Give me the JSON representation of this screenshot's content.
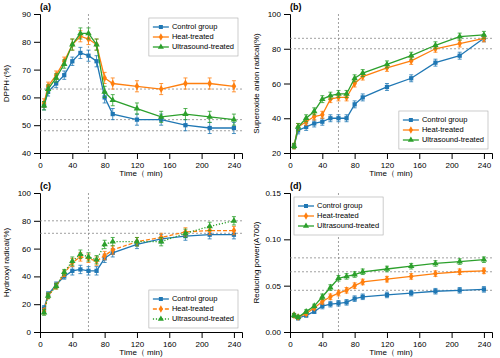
{
  "chart_data": [
    {
      "type": "line",
      "annotations": [
        "(a)"
      ],
      "x_label": "Time（ min)",
      "y_label": "DPPH·(%)",
      "x": [
        5,
        10,
        20,
        30,
        40,
        50,
        60,
        70,
        80,
        90,
        120,
        150,
        180,
        210,
        240
      ],
      "xlim": [
        0,
        250
      ],
      "xticks": [
        0,
        40,
        80,
        120,
        160,
        200,
        240
      ],
      "ylim": [
        40,
        90
      ],
      "yticks": [
        40,
        50,
        60,
        70,
        80,
        90
      ],
      "hlines": [
        63,
        52,
        48
      ],
      "vline": 60,
      "grid": false,
      "legend": "upper right",
      "series": [
        {
          "name": "Control group",
          "marker": "square",
          "line_style": "solid",
          "values": [
            57,
            62,
            65,
            68,
            73,
            76,
            75,
            73,
            60,
            54,
            52,
            52,
            50,
            49,
            49
          ],
          "errors": [
            1.5,
            1.5,
            1.5,
            1.5,
            1.5,
            2,
            2,
            2,
            2,
            2,
            2,
            2,
            2,
            2,
            2
          ]
        },
        {
          "name": "Heat-treated",
          "marker": "diamond",
          "line_style": "solid",
          "values": [
            58,
            64,
            68,
            73,
            79,
            82,
            81,
            79,
            67,
            65,
            64,
            63,
            65,
            65,
            64
          ],
          "errors": [
            1.5,
            1.5,
            1.5,
            1.5,
            2,
            2,
            2,
            2,
            2,
            2,
            2,
            2,
            2,
            2,
            2
          ]
        },
        {
          "name": "Ultrasound-treated",
          "marker": "triangle",
          "line_style": "solid",
          "values": [
            57,
            63,
            67,
            72,
            79,
            83,
            83,
            79,
            62,
            59,
            56,
            53,
            54,
            53,
            52
          ],
          "errors": [
            1.5,
            1.5,
            1.5,
            1.5,
            2,
            2,
            2,
            2,
            2,
            2,
            2,
            2,
            2,
            2,
            2
          ]
        }
      ]
    },
    {
      "type": "line",
      "annotations": [
        "(b)"
      ],
      "x_label": "Time（ min)",
      "y_label": "Superoxide anion radical(%)",
      "x": [
        5,
        10,
        20,
        30,
        40,
        50,
        60,
        70,
        80,
        90,
        120,
        150,
        180,
        210,
        240
      ],
      "xlim": [
        0,
        250
      ],
      "xticks": [
        0,
        40,
        80,
        120,
        160,
        200,
        240
      ],
      "ylim": [
        20,
        100
      ],
      "yticks": [
        20,
        40,
        60,
        80,
        100
      ],
      "hlines": [
        86,
        80
      ],
      "vline": 60,
      "grid": false,
      "legend": "lower right",
      "series": [
        {
          "name": "Control group",
          "marker": "square",
          "line_style": "solid",
          "values": [
            24,
            33,
            35,
            37,
            38,
            40,
            40,
            40,
            48,
            52,
            58,
            63,
            72,
            76,
            86
          ],
          "errors": [
            1.5,
            2,
            2,
            2,
            2,
            2,
            2,
            2,
            2,
            2,
            2,
            2,
            2,
            2,
            2
          ]
        },
        {
          "name": "Heat-treated",
          "marker": "diamond",
          "line_style": "solid",
          "values": [
            24,
            35,
            38,
            41,
            42,
            51,
            52,
            52,
            60,
            64,
            69,
            73,
            80,
            83,
            86
          ],
          "errors": [
            1.5,
            2,
            2,
            2,
            2,
            2,
            2,
            2,
            2,
            2,
            2,
            2,
            2,
            2,
            2
          ]
        },
        {
          "name": "Ultrasound-treated",
          "marker": "triangle",
          "line_style": "solid",
          "values": [
            24,
            35,
            40,
            44,
            51,
            53,
            54,
            54,
            63,
            66,
            71,
            76,
            82,
            87,
            88
          ],
          "errors": [
            1.5,
            2,
            2,
            2,
            2,
            2,
            2,
            2,
            2,
            2,
            2,
            2,
            2,
            2,
            2
          ]
        }
      ]
    },
    {
      "type": "line",
      "annotations": [
        "(c)"
      ],
      "x_label": "Time（ min)",
      "y_label": "Hydroxyl radical(%)",
      "x": [
        5,
        10,
        20,
        30,
        40,
        50,
        60,
        70,
        80,
        90,
        120,
        150,
        180,
        210,
        240
      ],
      "xlim": [
        0,
        250
      ],
      "xticks": [
        0,
        40,
        80,
        120,
        160,
        200,
        240
      ],
      "ylim": [
        0,
        100
      ],
      "yticks": [
        0,
        20,
        40,
        60,
        80,
        100
      ],
      "hlines": [
        80,
        71
      ],
      "vline": 60,
      "grid": false,
      "legend": "lower right",
      "series": [
        {
          "name": "Control group",
          "marker": "square",
          "line_style": "solid",
          "values": [
            17,
            27,
            34,
            40,
            44,
            45,
            44,
            44,
            53,
            57,
            63,
            67,
            69,
            70,
            70
          ],
          "errors": [
            2,
            2,
            2,
            2,
            3,
            3,
            3,
            3,
            3,
            3,
            3,
            3,
            3,
            3,
            3
          ]
        },
        {
          "name": "Heat-treated",
          "marker": "diamond",
          "line_style": "dashed",
          "values": [
            15,
            26,
            33,
            42,
            50,
            54,
            53,
            51,
            55,
            59,
            65,
            68,
            72,
            73,
            73
          ],
          "errors": [
            2,
            2,
            2,
            2,
            3,
            3,
            3,
            3,
            3,
            3,
            3,
            3,
            3,
            3,
            3
          ]
        },
        {
          "name": "Ultrasound-treated",
          "marker": "triangle",
          "line_style": "dotted",
          "values": [
            14,
            26,
            33,
            43,
            51,
            56,
            54,
            52,
            63,
            65,
            65,
            65,
            71,
            76,
            80
          ],
          "errors": [
            2,
            2,
            2,
            2,
            3,
            3,
            3,
            3,
            3,
            3,
            3,
            3,
            3,
            3,
            3
          ]
        }
      ]
    },
    {
      "type": "line",
      "annotations": [
        "(d)"
      ],
      "x_label": "Time（ min)",
      "y_label": "Reducing power(A700)",
      "x": [
        5,
        10,
        20,
        30,
        40,
        50,
        60,
        70,
        80,
        90,
        120,
        150,
        180,
        210,
        240
      ],
      "xlim": [
        0,
        250
      ],
      "xticks": [
        0,
        40,
        80,
        120,
        160,
        200,
        240
      ],
      "ylim": [
        0.0,
        0.15
      ],
      "yticks": [
        {
          "value": 0,
          "label": "0.00"
        },
        0.05,
        {
          "value": 0.1,
          "label": "0.10"
        },
        0.15
      ],
      "hlines": [
        0.08,
        0.065,
        0.045
      ],
      "vline": 60,
      "grid": false,
      "legend": "upper left",
      "series": [
        {
          "name": "Control group",
          "marker": "square",
          "line_style": "solid",
          "values": [
            0.018,
            0.015,
            0.018,
            0.022,
            0.028,
            0.03,
            0.031,
            0.032,
            0.036,
            0.038,
            0.04,
            0.042,
            0.044,
            0.045,
            0.046
          ],
          "errors": [
            0.002,
            0.002,
            0.002,
            0.002,
            0.003,
            0.003,
            0.003,
            0.003,
            0.003,
            0.003,
            0.003,
            0.003,
            0.003,
            0.003,
            0.003
          ]
        },
        {
          "name": "Heat-treated",
          "marker": "diamond",
          "line_style": "solid",
          "values": [
            0.018,
            0.016,
            0.02,
            0.026,
            0.033,
            0.038,
            0.042,
            0.045,
            0.05,
            0.054,
            0.057,
            0.06,
            0.063,
            0.065,
            0.066
          ],
          "errors": [
            0.002,
            0.002,
            0.002,
            0.002,
            0.003,
            0.003,
            0.003,
            0.003,
            0.003,
            0.003,
            0.003,
            0.003,
            0.003,
            0.003,
            0.003
          ]
        },
        {
          "name": "Ultrasound-treated",
          "marker": "triangle",
          "line_style": "solid",
          "values": [
            0.018,
            0.016,
            0.022,
            0.028,
            0.038,
            0.048,
            0.058,
            0.06,
            0.062,
            0.065,
            0.068,
            0.071,
            0.074,
            0.076,
            0.078
          ],
          "errors": [
            0.002,
            0.002,
            0.002,
            0.002,
            0.003,
            0.003,
            0.003,
            0.003,
            0.003,
            0.003,
            0.003,
            0.003,
            0.003,
            0.003,
            0.003
          ]
        }
      ]
    }
  ]
}
